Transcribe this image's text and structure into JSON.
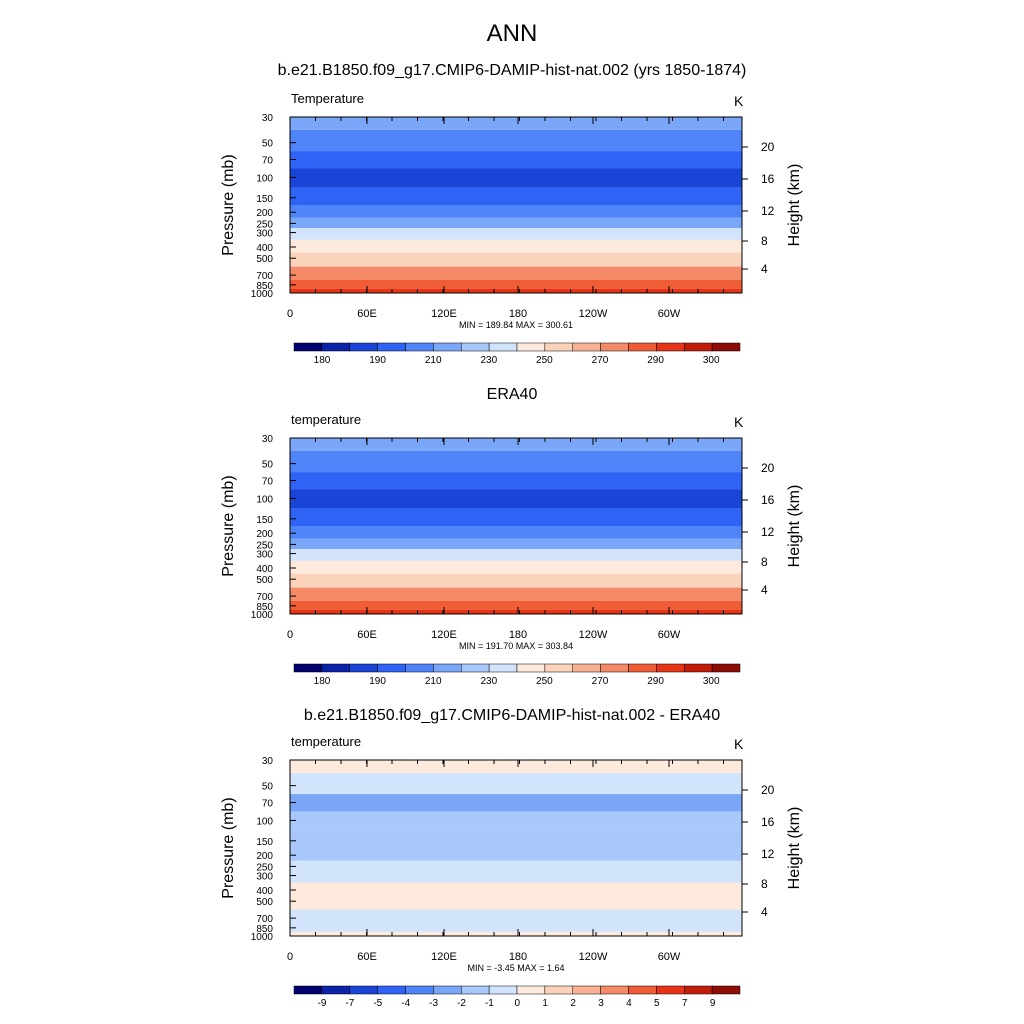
{
  "page": {
    "title": "ANN"
  },
  "chart_data": [
    {
      "type": "heatmap",
      "title": "b.e21.B1850.f09_g17.CMIP6-DAMIP-hist-nat.002 (yrs 1850-1874)",
      "left_label": "Temperature",
      "units": "K",
      "ylabel": "Pressure (mb)",
      "ylabel_right": "Height (km)",
      "x_ticks": [
        "0",
        "60E",
        "120E",
        "180",
        "120W",
        "60W"
      ],
      "y_ticks": [
        "30",
        "50",
        "70",
        "100",
        "150",
        "200",
        "250",
        "300",
        "400",
        "500",
        "700",
        "850",
        "1000"
      ],
      "height_ticks": [
        "20",
        "16",
        "12",
        "8",
        "4"
      ],
      "stats": "MIN = 189.84  MAX = 300.61",
      "colorbar_labels": [
        "180",
        "190",
        "210",
        "230",
        "250",
        "270",
        "290",
        "300"
      ],
      "colorbar_colors": [
        "#03006f",
        "#0a23a8",
        "#1a44d6",
        "#2f63f5",
        "#4f85f8",
        "#7aa6f8",
        "#a8c7fb",
        "#d2e4fc",
        "#fdeadc",
        "#fbd3bb",
        "#f8b293",
        "#f48a67",
        "#ef5c35",
        "#e53416",
        "#c11b0a",
        "#8e0c06"
      ],
      "layers": [
        {
          "pressure": 30,
          "temperature": 222,
          "color": "#7aa6f8"
        },
        {
          "pressure": 50,
          "temperature": 216,
          "color": "#4f85f8"
        },
        {
          "pressure": 70,
          "temperature": 207,
          "color": "#2f63f5"
        },
        {
          "pressure": 100,
          "temperature": 203,
          "color": "#1a44d6"
        },
        {
          "pressure": 150,
          "temperature": 207,
          "color": "#2f63f5"
        },
        {
          "pressure": 200,
          "temperature": 214,
          "color": "#4f85f8"
        },
        {
          "pressure": 250,
          "temperature": 222,
          "color": "#7aa6f8"
        },
        {
          "pressure": 300,
          "temperature": 233,
          "color": "#d2e4fc"
        },
        {
          "pressure": 400,
          "temperature": 246,
          "color": "#fdeadc"
        },
        {
          "pressure": 500,
          "temperature": 256,
          "color": "#fbd3bb"
        },
        {
          "pressure": 700,
          "temperature": 275,
          "color": "#f48a67"
        },
        {
          "pressure": 850,
          "temperature": 284,
          "color": "#ef5c35"
        },
        {
          "pressure": 1000,
          "temperature": 292,
          "color": "#e53416"
        }
      ]
    },
    {
      "type": "heatmap",
      "title": "ERA40",
      "left_label": "temperature",
      "units": "K",
      "ylabel": "Pressure (mb)",
      "ylabel_right": "Height (km)",
      "x_ticks": [
        "0",
        "60E",
        "120E",
        "180",
        "120W",
        "60W"
      ],
      "y_ticks": [
        "30",
        "50",
        "70",
        "100",
        "150",
        "200",
        "250",
        "300",
        "400",
        "500",
        "700",
        "850",
        "1000"
      ],
      "height_ticks": [
        "20",
        "16",
        "12",
        "8",
        "4"
      ],
      "stats": "MIN = 191.70  MAX = 303.84",
      "colorbar_labels": [
        "180",
        "190",
        "210",
        "230",
        "250",
        "270",
        "290",
        "300"
      ],
      "colorbar_colors": [
        "#03006f",
        "#0a23a8",
        "#1a44d6",
        "#2f63f5",
        "#4f85f8",
        "#7aa6f8",
        "#a8c7fb",
        "#d2e4fc",
        "#fdeadc",
        "#fbd3bb",
        "#f8b293",
        "#f48a67",
        "#ef5c35",
        "#e53416",
        "#c11b0a",
        "#8e0c06"
      ],
      "layers": [
        {
          "pressure": 30,
          "temperature": 224,
          "color": "#7aa6f8"
        },
        {
          "pressure": 50,
          "temperature": 217,
          "color": "#4f85f8"
        },
        {
          "pressure": 70,
          "temperature": 208,
          "color": "#2f63f5"
        },
        {
          "pressure": 100,
          "temperature": 204,
          "color": "#1a44d6"
        },
        {
          "pressure": 150,
          "temperature": 208,
          "color": "#2f63f5"
        },
        {
          "pressure": 200,
          "temperature": 215,
          "color": "#4f85f8"
        },
        {
          "pressure": 250,
          "temperature": 223,
          "color": "#7aa6f8"
        },
        {
          "pressure": 300,
          "temperature": 234,
          "color": "#d2e4fc"
        },
        {
          "pressure": 400,
          "temperature": 247,
          "color": "#fdeadc"
        },
        {
          "pressure": 500,
          "temperature": 257,
          "color": "#fbd3bb"
        },
        {
          "pressure": 700,
          "temperature": 276,
          "color": "#f48a67"
        },
        {
          "pressure": 850,
          "temperature": 285,
          "color": "#ef5c35"
        },
        {
          "pressure": 1000,
          "temperature": 294,
          "color": "#e53416"
        }
      ]
    },
    {
      "type": "heatmap",
      "title": "b.e21.B1850.f09_g17.CMIP6-DAMIP-hist-nat.002 - ERA40",
      "left_label": "temperature",
      "units": "K",
      "ylabel": "Pressure (mb)",
      "ylabel_right": "Height (km)",
      "x_ticks": [
        "0",
        "60E",
        "120E",
        "180",
        "120W",
        "60W"
      ],
      "y_ticks": [
        "30",
        "50",
        "70",
        "100",
        "150",
        "200",
        "250",
        "300",
        "400",
        "500",
        "700",
        "850",
        "1000"
      ],
      "height_ticks": [
        "20",
        "16",
        "12",
        "8",
        "4"
      ],
      "stats": "MIN =  -3.45  MAX =   1.64",
      "colorbar_labels": [
        "-9",
        "-7",
        "-5",
        "-4",
        "-3",
        "-2",
        "-1",
        "0",
        "1",
        "2",
        "3",
        "4",
        "5",
        "7",
        "9"
      ],
      "colorbar_colors": [
        "#03006f",
        "#0a23a8",
        "#1a44d6",
        "#2f63f5",
        "#4f85f8",
        "#7aa6f8",
        "#a8c7fb",
        "#d2e4fc",
        "#fdeadc",
        "#fbd3bb",
        "#f8b293",
        "#f48a67",
        "#ef5c35",
        "#e53416",
        "#c11b0a",
        "#8e0c06"
      ],
      "layers": [
        {
          "pressure": 30,
          "temperature": 0.3,
          "color": "#fdeadc"
        },
        {
          "pressure": 50,
          "temperature": -0.5,
          "color": "#d2e4fc"
        },
        {
          "pressure": 70,
          "temperature": -2.2,
          "color": "#7aa6f8"
        },
        {
          "pressure": 100,
          "temperature": -1.4,
          "color": "#a8c7fb"
        },
        {
          "pressure": 150,
          "temperature": -1.3,
          "color": "#a8c7fb"
        },
        {
          "pressure": 200,
          "temperature": -1.2,
          "color": "#a8c7fb"
        },
        {
          "pressure": 250,
          "temperature": -0.6,
          "color": "#d2e4fc"
        },
        {
          "pressure": 300,
          "temperature": -0.5,
          "color": "#d2e4fc"
        },
        {
          "pressure": 400,
          "temperature": 0.4,
          "color": "#fdeadc"
        },
        {
          "pressure": 500,
          "temperature": 0.3,
          "color": "#fdeadc"
        },
        {
          "pressure": 700,
          "temperature": -0.4,
          "color": "#d2e4fc"
        },
        {
          "pressure": 850,
          "temperature": -0.6,
          "color": "#d2e4fc"
        },
        {
          "pressure": 1000,
          "temperature": 0.2,
          "color": "#fdeadc"
        }
      ]
    }
  ]
}
